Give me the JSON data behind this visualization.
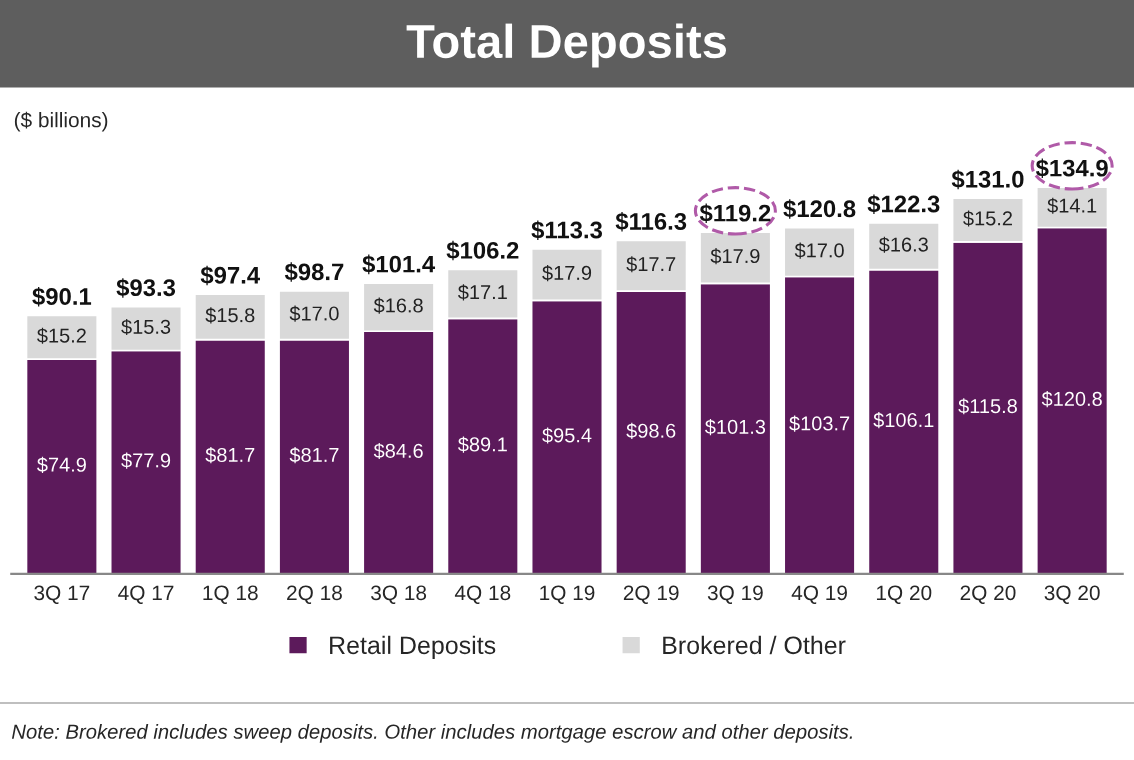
{
  "chart_data": {
    "type": "bar",
    "title": "Total Deposits",
    "ylabel": "($ billions)",
    "stacked": true,
    "legend": "bottom",
    "grid": false,
    "categories": [
      "3Q 17",
      "4Q 17",
      "1Q 18",
      "2Q 18",
      "3Q 18",
      "4Q 18",
      "1Q 19",
      "2Q 19",
      "3Q 19",
      "4Q 19",
      "1Q 20",
      "2Q 20",
      "3Q 20"
    ],
    "series": [
      {
        "name": "Retail Deposits",
        "color": "#5c1a5b",
        "values": [
          74.9,
          77.9,
          81.7,
          81.7,
          84.6,
          89.1,
          95.4,
          98.6,
          101.3,
          103.7,
          106.1,
          115.8,
          120.8
        ],
        "value_labels": [
          "$74.9",
          "$77.9",
          "$81.7",
          "$81.7",
          "$84.6",
          "$89.1",
          "$95.4",
          "$98.6",
          "$101.3",
          "$103.7",
          "$106.1",
          "$115.8",
          "$120.8"
        ]
      },
      {
        "name": "Brokered / Other",
        "color": "#d9d9d9",
        "values": [
          15.2,
          15.3,
          15.8,
          17.0,
          16.8,
          17.1,
          17.9,
          17.7,
          17.9,
          17.0,
          16.3,
          15.2,
          14.1
        ],
        "value_labels": [
          "$15.2",
          "$15.3",
          "$15.8",
          "$17.0",
          "$16.8",
          "$17.1",
          "$17.9",
          "$17.7",
          "$17.9",
          "$17.0",
          "$16.3",
          "$15.2",
          "$14.1"
        ]
      }
    ],
    "totals": [
      "$90.1",
      "$93.3",
      "$97.4",
      "$98.7",
      "$101.4",
      "$106.2",
      "$113.3",
      "$116.3",
      "$119.2",
      "$120.8",
      "$122.3",
      "$131.0",
      "$134.9"
    ],
    "annotations": [
      "Note: Brokered includes sweep deposits. Other includes mortgage escrow and other deposits."
    ]
  }
}
